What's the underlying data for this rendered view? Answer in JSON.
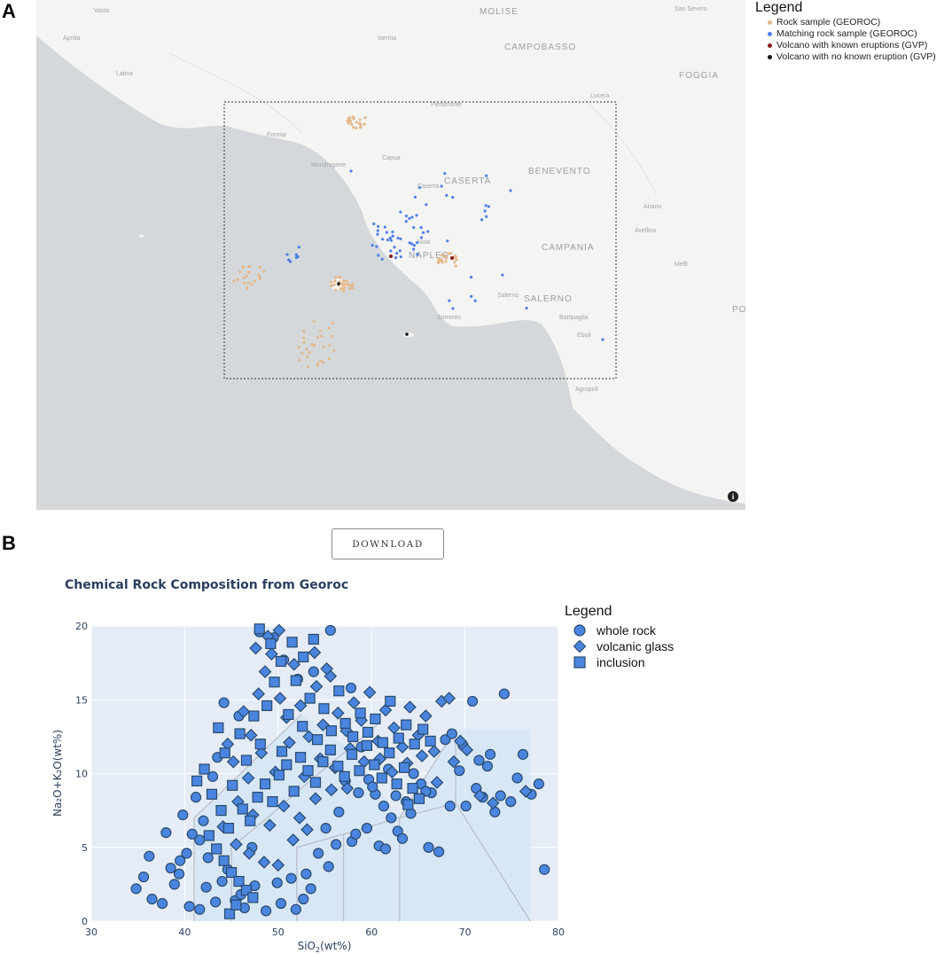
{
  "panels": {
    "a": "A",
    "b": "B"
  },
  "map": {
    "region_labels": [
      "MOLISE",
      "CAMPOBASSO",
      "FOGGIA",
      "CASERTA",
      "BENEVENTO",
      "CAMPANIA",
      "NAPLES",
      "SALERNO",
      "POTE"
    ],
    "town_labels": [
      "Vasto",
      "San Severo",
      "Isernia",
      "Ariano",
      "Lucera",
      "Aprilia",
      "Latina",
      "Formia",
      "Mondragone",
      "Capua",
      "Nola",
      "Avellino",
      "Sorrento",
      "Salerno",
      "Battipaglia",
      "Agropoli",
      "Eboli",
      "Piedimonte",
      "Caserta",
      "Melfi"
    ],
    "colors": {
      "land": "#f4f4f2",
      "sea": "#d4d8db",
      "rock_sample": "#e3b98d",
      "matching_sample": "#4f80e8",
      "volcano_known": "#8b1a1a",
      "volcano_unknown": "#111111"
    },
    "legend": {
      "title": "Legend",
      "items": [
        {
          "label": "Rock sample (GEOROC)",
          "color": "#e3b98d"
        },
        {
          "label": "Matching rock sample (GEOROC)",
          "color": "#4f80e8"
        },
        {
          "label": "Volcano with known eruptions (GVP)",
          "color": "#8b1a1a"
        },
        {
          "label": "Volcano with no known eruption (GVP)",
          "color": "#111111"
        }
      ]
    },
    "info_icon": "info-icon"
  },
  "download": {
    "label": "DOWNLOAD"
  },
  "chart_data": {
    "type": "scatter",
    "title": "Chemical Rock Composition from Georoc",
    "xlabel_main": "SiO",
    "xlabel_sub": "2",
    "xlabel_tail": "(wt%)",
    "ylabel": "Na₂O+K₂O(wt%)",
    "xlim": [
      30,
      80
    ],
    "ylim": [
      0,
      20
    ],
    "x_ticks": [
      "30",
      "40",
      "50",
      "60",
      "70",
      "80"
    ],
    "y_ticks": [
      "0",
      "5",
      "10",
      "15",
      "20"
    ],
    "grid": true,
    "legend_position": "right",
    "legend": {
      "title": "Legend",
      "items": [
        {
          "label": "whole rock",
          "marker": "circle"
        },
        {
          "label": "volcanic glass",
          "marker": "diamond"
        },
        {
          "label": "inclusion",
          "marker": "square"
        }
      ]
    },
    "marker_color": "#4a86e0",
    "marker_edge": "#2a4a6a",
    "series": [
      {
        "name": "whole rock",
        "marker": "circle",
        "points": [
          [
            34.8,
            2.2
          ],
          [
            35.6,
            3.0
          ],
          [
            36.2,
            4.4
          ],
          [
            36.5,
            1.5
          ],
          [
            37.6,
            1.2
          ],
          [
            38.0,
            6.0
          ],
          [
            38.5,
            3.6
          ],
          [
            38.9,
            2.5
          ],
          [
            39.4,
            3.2
          ],
          [
            39.8,
            7.2
          ],
          [
            40.2,
            4.6
          ],
          [
            40.5,
            1.0
          ],
          [
            41.2,
            8.4
          ],
          [
            41.6,
            0.8
          ],
          [
            42.0,
            6.8
          ],
          [
            42.3,
            2.3
          ],
          [
            43.0,
            9.8
          ],
          [
            43.5,
            11.1
          ],
          [
            44.2,
            14.8
          ],
          [
            44.6,
            3.5
          ],
          [
            45.4,
            1.4
          ],
          [
            45.8,
            13.9
          ],
          [
            46.4,
            0.9
          ],
          [
            47.2,
            5.0
          ],
          [
            48.0,
            19.6
          ],
          [
            49.5,
            19.2
          ],
          [
            50.6,
            17.7
          ],
          [
            52.1,
            16.4
          ],
          [
            53.8,
            16.9
          ],
          [
            55.6,
            19.7
          ],
          [
            57.8,
            15.8
          ],
          [
            58.9,
            11.8
          ],
          [
            59.7,
            9.6
          ],
          [
            60.4,
            8.6
          ],
          [
            61.3,
            7.8
          ],
          [
            62.1,
            7.0
          ],
          [
            62.8,
            6.1
          ],
          [
            63.7,
            8.1
          ],
          [
            64.5,
            10.0
          ],
          [
            65.3,
            9.3
          ],
          [
            66.4,
            8.7
          ],
          [
            67.2,
            4.7
          ],
          [
            67.9,
            12.3
          ],
          [
            68.6,
            12.7
          ],
          [
            69.4,
            10.2
          ],
          [
            70.1,
            7.8
          ],
          [
            70.8,
            14.9
          ],
          [
            71.2,
            9.0
          ],
          [
            71.9,
            8.4
          ],
          [
            72.7,
            11.3
          ],
          [
            73.2,
            7.4
          ],
          [
            73.8,
            8.5
          ],
          [
            74.2,
            15.4
          ],
          [
            75.6,
            9.7
          ],
          [
            76.2,
            11.3
          ],
          [
            77.1,
            8.6
          ],
          [
            77.9,
            9.3
          ],
          [
            78.5,
            3.5
          ],
          [
            57.9,
            5.4
          ],
          [
            58.3,
            5.9
          ],
          [
            59.5,
            6.3
          ],
          [
            60.8,
            5.1
          ],
          [
            61.5,
            4.9
          ],
          [
            63.3,
            5.6
          ],
          [
            66.1,
            5.0
          ],
          [
            68.4,
            7.8
          ],
          [
            69.8,
            11.9
          ],
          [
            72.4,
            10.5
          ],
          [
            74.9,
            8.1
          ],
          [
            71.5,
            10.9
          ],
          [
            65.8,
            8.8
          ],
          [
            64.2,
            7.3
          ],
          [
            56.2,
            5.2
          ],
          [
            55.4,
            3.7
          ],
          [
            53.5,
            2.2
          ],
          [
            52.7,
            1.5
          ],
          [
            51.9,
            0.8
          ],
          [
            50.3,
            1.2
          ],
          [
            48.7,
            0.7
          ],
          [
            47.5,
            2.4
          ],
          [
            46.0,
            1.8
          ],
          [
            44.0,
            2.7
          ],
          [
            43.3,
            1.3
          ],
          [
            42.5,
            4.3
          ],
          [
            41.6,
            5.5
          ],
          [
            40.8,
            5.9
          ],
          [
            39.5,
            4.1
          ],
          [
            60.1,
            9.1
          ],
          [
            62.6,
            8.5
          ],
          [
            61.8,
            10.3
          ],
          [
            58.6,
            8.7
          ],
          [
            57.2,
            9.5
          ],
          [
            56.5,
            7.4
          ],
          [
            55.1,
            6.3
          ],
          [
            54.3,
            4.6
          ],
          [
            53.0,
            3.2
          ],
          [
            51.4,
            2.9
          ],
          [
            49.9,
            2.6
          ]
        ]
      },
      {
        "name": "volcanic glass",
        "marker": "diamond",
        "points": [
          [
            44.6,
            12.0
          ],
          [
            45.2,
            10.8
          ],
          [
            46.3,
            14.2
          ],
          [
            47.1,
            12.6
          ],
          [
            47.9,
            15.4
          ],
          [
            48.6,
            16.9
          ],
          [
            49.3,
            18.1
          ],
          [
            50.2,
            15.1
          ],
          [
            50.9,
            13.8
          ],
          [
            51.7,
            17.4
          ],
          [
            52.4,
            14.6
          ],
          [
            53.3,
            12.5
          ],
          [
            54.1,
            15.9
          ],
          [
            54.8,
            13.3
          ],
          [
            55.6,
            16.6
          ],
          [
            56.4,
            14.1
          ],
          [
            57.3,
            12.9
          ],
          [
            58.1,
            14.8
          ],
          [
            58.9,
            13.6
          ],
          [
            59.8,
            15.5
          ],
          [
            60.7,
            12.2
          ],
          [
            61.5,
            14.3
          ],
          [
            62.4,
            13.1
          ],
          [
            63.3,
            11.8
          ],
          [
            64.1,
            14.5
          ],
          [
            65.0,
            12.6
          ],
          [
            65.8,
            13.9
          ],
          [
            66.7,
            11.5
          ],
          [
            67.5,
            14.9
          ],
          [
            68.3,
            15.1
          ],
          [
            46.8,
            9.7
          ],
          [
            48.2,
            11.4
          ],
          [
            49.7,
            10.1
          ],
          [
            51.2,
            12.1
          ],
          [
            52.8,
            9.8
          ],
          [
            54.5,
            11.0
          ],
          [
            56.1,
            10.4
          ],
          [
            57.7,
            11.7
          ],
          [
            59.2,
            10.8
          ],
          [
            60.9,
            11.0
          ],
          [
            62.2,
            10.1
          ],
          [
            63.8,
            10.7
          ],
          [
            65.4,
            11.2
          ],
          [
            67.0,
            9.4
          ],
          [
            68.8,
            10.8
          ],
          [
            70.2,
            11.6
          ],
          [
            71.6,
            8.5
          ],
          [
            73.0,
            8.0
          ],
          [
            76.5,
            8.8
          ],
          [
            69.5,
            12.2
          ],
          [
            50.1,
            19.7
          ],
          [
            48.9,
            19.3
          ],
          [
            47.6,
            18.5
          ],
          [
            53.9,
            18.2
          ],
          [
            55.2,
            17.1
          ],
          [
            45.7,
            8.1
          ],
          [
            47.3,
            7.2
          ],
          [
            49.1,
            6.5
          ],
          [
            50.6,
            7.8
          ],
          [
            52.3,
            7.0
          ],
          [
            54.0,
            8.3
          ],
          [
            55.7,
            8.9
          ],
          [
            57.4,
            9.0
          ],
          [
            44.1,
            6.4
          ],
          [
            45.5,
            5.2
          ],
          [
            46.9,
            4.6
          ],
          [
            48.5,
            4.0
          ],
          [
            50.0,
            3.8
          ],
          [
            51.6,
            5.5
          ],
          [
            53.1,
            6.2
          ]
        ]
      },
      {
        "name": "inclusion",
        "marker": "square",
        "points": [
          [
            41.3,
            9.5
          ],
          [
            42.1,
            10.3
          ],
          [
            42.9,
            8.6
          ],
          [
            43.6,
            13.1
          ],
          [
            44.3,
            11.4
          ],
          [
            45.1,
            9.2
          ],
          [
            45.9,
            12.7
          ],
          [
            46.6,
            10.9
          ],
          [
            47.4,
            13.9
          ],
          [
            48.1,
            12.0
          ],
          [
            48.8,
            14.6
          ],
          [
            49.6,
            16.2
          ],
          [
            50.4,
            11.5
          ],
          [
            51.1,
            14.0
          ],
          [
            51.9,
            16.3
          ],
          [
            52.6,
            13.2
          ],
          [
            53.4,
            15.1
          ],
          [
            54.2,
            12.3
          ],
          [
            54.9,
            14.4
          ],
          [
            55.7,
            12.9
          ],
          [
            56.5,
            15.6
          ],
          [
            57.2,
            13.4
          ],
          [
            58.0,
            12.5
          ],
          [
            58.8,
            14.1
          ],
          [
            59.6,
            12.8
          ],
          [
            60.4,
            13.7
          ],
          [
            61.2,
            12.1
          ],
          [
            62.0,
            14.9
          ],
          [
            62.9,
            12.4
          ],
          [
            63.7,
            13.3
          ],
          [
            64.6,
            12.0
          ],
          [
            65.5,
            13.0
          ],
          [
            66.3,
            12.2
          ],
          [
            42.6,
            5.8
          ],
          [
            43.4,
            4.9
          ],
          [
            44.2,
            4.1
          ],
          [
            45.0,
            3.3
          ],
          [
            45.8,
            2.7
          ],
          [
            46.6,
            2.1
          ],
          [
            47.3,
            1.6
          ],
          [
            44.8,
            0.5
          ],
          [
            45.5,
            1.1
          ],
          [
            46.2,
            7.6
          ],
          [
            47.0,
            6.8
          ],
          [
            47.8,
            8.4
          ],
          [
            48.6,
            9.3
          ],
          [
            49.4,
            8.1
          ],
          [
            50.1,
            9.9
          ],
          [
            50.9,
            10.6
          ],
          [
            51.7,
            8.8
          ],
          [
            52.4,
            11.1
          ],
          [
            53.2,
            10.2
          ],
          [
            54.0,
            9.4
          ],
          [
            54.8,
            10.8
          ],
          [
            55.6,
            11.6
          ],
          [
            56.4,
            10.5
          ],
          [
            57.1,
            9.8
          ],
          [
            57.9,
            11.3
          ],
          [
            58.7,
            10.2
          ],
          [
            59.5,
            11.9
          ],
          [
            60.3,
            10.6
          ],
          [
            61.1,
            9.7
          ],
          [
            61.9,
            11.4
          ],
          [
            62.7,
            9.3
          ],
          [
            63.5,
            10.4
          ],
          [
            64.4,
            9.0
          ],
          [
            43.9,
            7.5
          ],
          [
            44.7,
            6.3
          ],
          [
            48.0,
            19.8
          ],
          [
            49.2,
            18.8
          ],
          [
            50.3,
            17.6
          ],
          [
            51.5,
            18.9
          ],
          [
            52.7,
            17.9
          ],
          [
            53.8,
            19.1
          ],
          [
            63.9,
            7.9
          ],
          [
            65.1,
            8.3
          ]
        ]
      }
    ]
  }
}
